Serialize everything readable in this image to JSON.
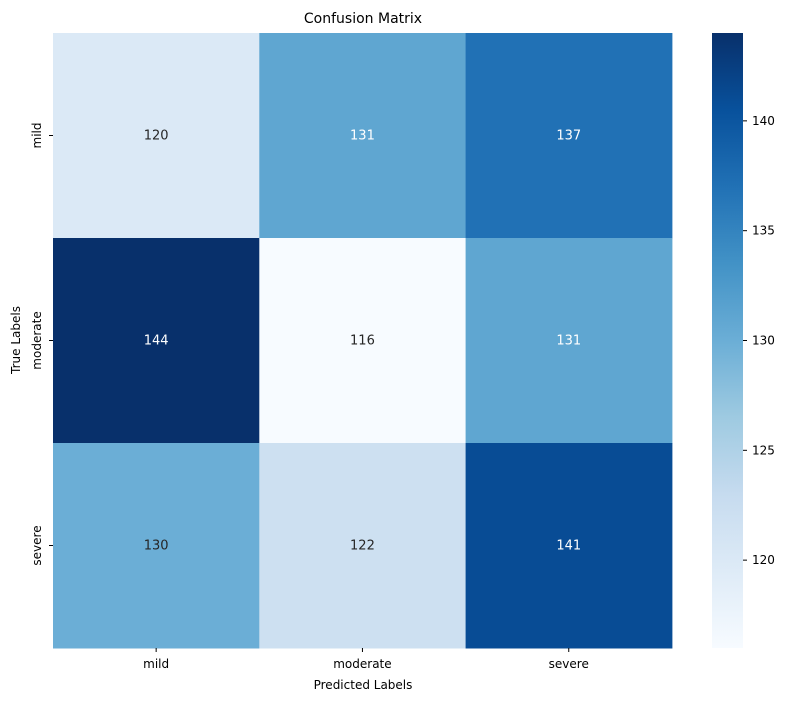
{
  "chart_data": {
    "type": "heatmap",
    "title": "Confusion Matrix",
    "xlabel": "Predicted Labels",
    "ylabel": "True Labels",
    "x_categories": [
      "mild",
      "moderate",
      "severe"
    ],
    "y_categories": [
      "mild",
      "moderate",
      "severe"
    ],
    "values": [
      [
        120,
        131,
        137
      ],
      [
        144,
        116,
        131
      ],
      [
        130,
        122,
        141
      ]
    ],
    "colormap": "Blues",
    "colorbar": {
      "min": 116,
      "max": 144,
      "ticks": [
        120,
        125,
        130,
        135,
        140
      ]
    },
    "annotation_colors": {
      "light": "#ffffff",
      "dark": "#262626"
    }
  }
}
